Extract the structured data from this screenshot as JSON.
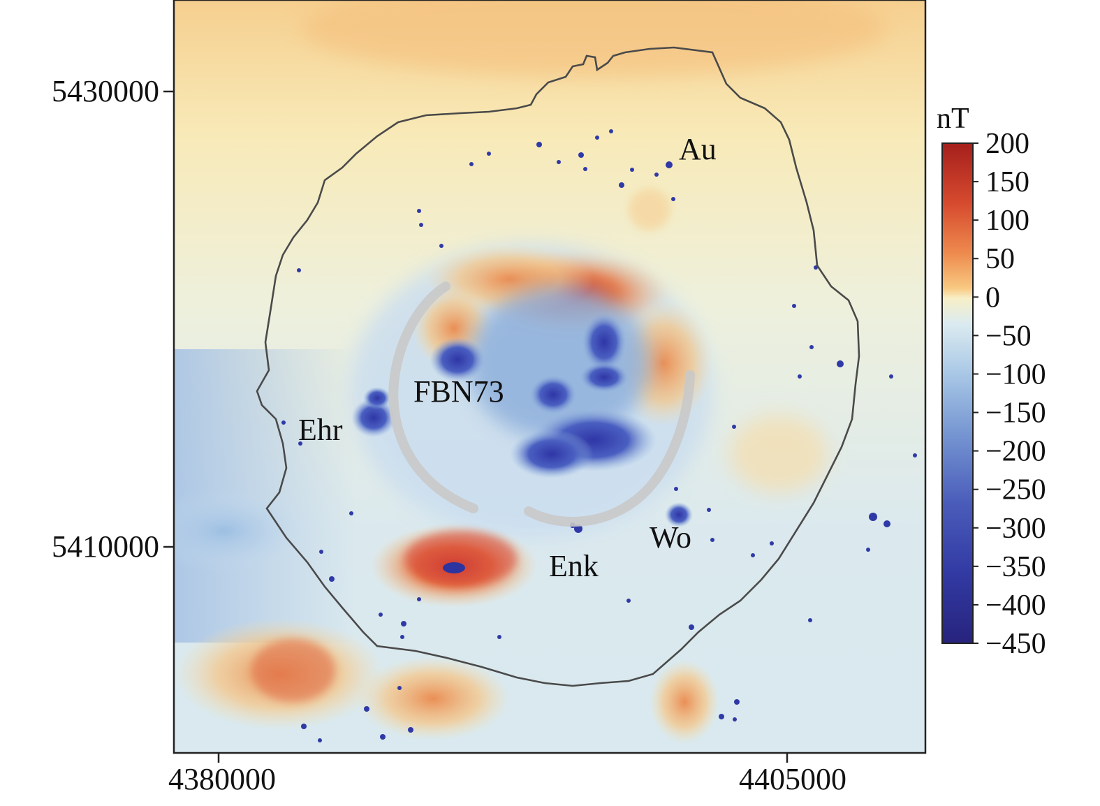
{
  "map": {
    "x_ticks": [
      "4380000",
      "4405000"
    ],
    "y_ticks": [
      "5430000",
      "5410000"
    ],
    "place_labels": {
      "au": "Au",
      "fbn73": "FBN73",
      "ehr": "Ehr",
      "wo": "Wo",
      "enk": "Enk"
    },
    "colors": {
      "positive_high": "#a51f1c",
      "positive_mid": "#e0683d",
      "neutral": "#f5edbd",
      "negative_mid": "#7f9fd0",
      "negative_high": "#25288e"
    }
  },
  "colorbar": {
    "unit": "nT",
    "tick_labels": [
      "200",
      "150",
      "100",
      "50",
      "0",
      "−50",
      "−100",
      "−150",
      "−200",
      "−250",
      "−300",
      "−350",
      "−400",
      "−450"
    ],
    "min": -450,
    "max": 200
  }
}
